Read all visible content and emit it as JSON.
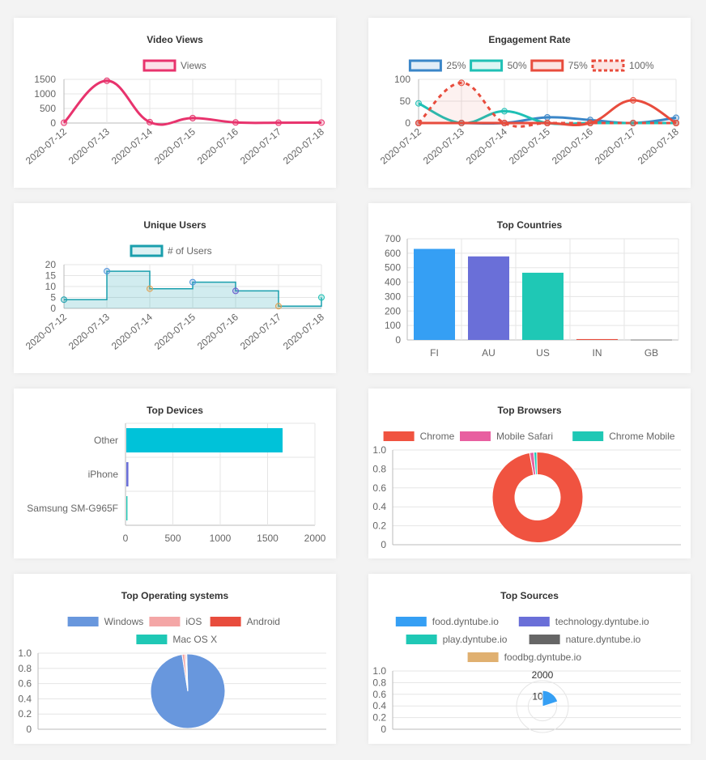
{
  "chart_data": [
    {
      "id": "video_views",
      "type": "line",
      "title": "Video Views",
      "x": [
        "2020-07-12",
        "2020-07-13",
        "2020-07-14",
        "2020-07-15",
        "2020-07-16",
        "2020-07-17",
        "2020-07-18"
      ],
      "series": [
        {
          "name": "Views",
          "values": [
            10,
            1450,
            30,
            170,
            20,
            10,
            15
          ],
          "color": "#e8336d"
        }
      ],
      "ylim": [
        0,
        1500
      ],
      "yticks": [
        "1500",
        "1000",
        "500",
        "0"
      ],
      "grid": true
    },
    {
      "id": "engagement_rate",
      "type": "line",
      "title": "Engagement Rate",
      "x": [
        "2020-07-12",
        "2020-07-13",
        "2020-07-14",
        "2020-07-15",
        "2020-07-16",
        "2020-07-17",
        "2020-07-18"
      ],
      "series": [
        {
          "name": "25%",
          "values": [
            0,
            0,
            0,
            13,
            7,
            0,
            12
          ],
          "color": "#3a86c8"
        },
        {
          "name": "50%",
          "values": [
            45,
            0,
            27,
            0,
            0,
            0,
            0
          ],
          "color": "#1fc0b5"
        },
        {
          "name": "75%",
          "values": [
            0,
            0,
            0,
            0,
            0,
            52,
            0
          ],
          "color": "#e84c3d"
        },
        {
          "name": "100%",
          "values": [
            0,
            92,
            0,
            0,
            0,
            0,
            0
          ],
          "color": "#e84c3d",
          "dashed": true
        }
      ],
      "ylim": [
        0,
        100
      ],
      "yticks": [
        "100",
        "50",
        "0"
      ],
      "grid": true
    },
    {
      "id": "unique_users",
      "type": "area",
      "title": "Unique Users",
      "x": [
        "2020-07-12",
        "2020-07-13",
        "2020-07-14",
        "2020-07-15",
        "2020-07-16",
        "2020-07-17",
        "2020-07-18"
      ],
      "series": [
        {
          "name": "# of Users",
          "values": [
            4,
            17,
            9,
            12,
            8,
            1,
            5
          ],
          "color": "#1a9fad"
        }
      ],
      "point_colors": [
        "#1a9fad",
        "#4a90d9",
        "#e0a050",
        "#4a90d9",
        "#6a5acd",
        "#e0a050",
        "#1fc0b5"
      ],
      "ylim": [
        0,
        20
      ],
      "yticks": [
        "20",
        "15",
        "10",
        "5",
        "0"
      ],
      "grid": true
    },
    {
      "id": "top_countries",
      "type": "bar",
      "title": "Top Countries",
      "categories": [
        "FI",
        "AU",
        "US",
        "IN",
        "GB"
      ],
      "values": [
        630,
        578,
        465,
        6,
        2
      ],
      "colors": [
        "#359ff4",
        "#6a6fd8",
        "#1fc8b5",
        "#e84c3d",
        "#666666"
      ],
      "ylim": [
        0,
        700
      ],
      "yticks": [
        "700",
        "600",
        "500",
        "400",
        "300",
        "200",
        "100",
        "0"
      ],
      "grid": true
    },
    {
      "id": "top_devices",
      "type": "bar",
      "orientation": "horizontal",
      "title": "Top Devices",
      "categories": [
        "Other",
        "iPhone",
        "Samsung SM-G965F"
      ],
      "values": [
        1650,
        22,
        12
      ],
      "colors": [
        "#00c2d9",
        "#6a6fd8",
        "#1fc8b5"
      ],
      "xlim": [
        0,
        2000
      ],
      "xticks": [
        "0",
        "500",
        "1000",
        "1500",
        "2000"
      ],
      "grid": true
    },
    {
      "id": "top_browsers",
      "type": "pie",
      "donut": true,
      "title": "Top Browsers",
      "labels": [
        "Chrome",
        "Mobile Safari",
        "Chrome Mobile"
      ],
      "values": [
        97.5,
        1.5,
        1
      ],
      "colors": [
        "#f05340",
        "#e85fa0",
        "#1fc8b5"
      ],
      "yticks": [
        "1.0",
        "0.8",
        "0.6",
        "0.4",
        "0.2",
        "0"
      ],
      "legend": "top"
    },
    {
      "id": "top_os",
      "type": "pie",
      "title": "Top Operating systems",
      "labels": [
        "Windows",
        "iOS",
        "Android",
        "Mac OS X"
      ],
      "values": [
        98,
        1.2,
        0.5,
        0.3
      ],
      "colors": [
        "#6897dd",
        "#f4a6a6",
        "#e84c3d",
        "#1fc8b5"
      ],
      "yticks": [
        "1.0",
        "0.8",
        "0.6",
        "0.4",
        "0.2",
        "0"
      ],
      "legend": "top"
    },
    {
      "id": "top_sources",
      "type": "pie",
      "polar": true,
      "title": "Top Sources",
      "labels": [
        "food.dyntube.io",
        "technology.dyntube.io",
        "play.dyntube.io",
        "nature.dyntube.io",
        "foodbg.dyntube.io"
      ],
      "values": [
        1,
        0,
        0,
        0,
        0
      ],
      "colors": [
        "#359ff4",
        "#6a6fd8",
        "#1fc8b5",
        "#666666",
        "#e0b070"
      ],
      "radial_ticks": [
        "2000",
        "10"
      ],
      "yticks": [
        "1.0",
        "0.8",
        "0.6",
        "0.4",
        "0.2",
        "0"
      ],
      "legend": "top"
    }
  ]
}
